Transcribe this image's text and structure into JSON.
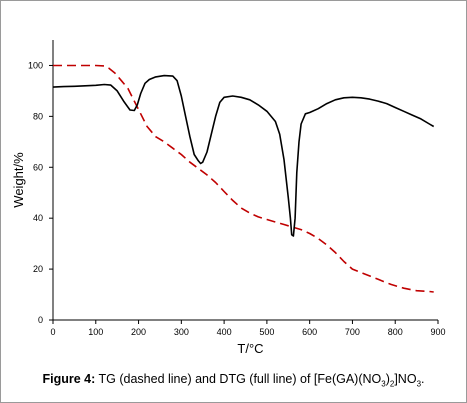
{
  "caption": {
    "label": "Figure 4:",
    "text_before": " TG (dashed line) and DTG (full line) of [Fe(GA)(NO",
    "sub1": "3",
    "text_mid": ")",
    "sub2": "2",
    "text_after": "]NO",
    "sub3": "3",
    "text_end": "."
  },
  "chart_data": {
    "type": "line",
    "title": "",
    "xlabel": "T/°C",
    "ylabel": "Weight/%",
    "xlim": [
      0,
      900
    ],
    "ylim": [
      0,
      110
    ],
    "xticks": [
      0,
      100,
      200,
      300,
      400,
      500,
      600,
      700,
      800,
      900
    ],
    "yticks": [
      0,
      20,
      40,
      60,
      80,
      100
    ],
    "grid": false,
    "legend": "none",
    "series": [
      {
        "label": "TG",
        "style": "dashed",
        "color": "#c00000",
        "x": [
          0,
          25,
          50,
          75,
          100,
          120,
          130,
          145,
          160,
          175,
          190,
          205,
          220,
          240,
          260,
          280,
          300,
          320,
          340,
          360,
          380,
          400,
          420,
          440,
          460,
          480,
          500,
          520,
          540,
          560,
          580,
          600,
          620,
          640,
          660,
          680,
          700,
          730,
          760,
          790,
          820,
          850,
          880,
          890
        ],
        "y": [
          100,
          100,
          100,
          100,
          100,
          99.8,
          99,
          97,
          94,
          91,
          86,
          81,
          76,
          72,
          70,
          67.5,
          65,
          62,
          59.5,
          57,
          54,
          50.5,
          47,
          44,
          42,
          40.5,
          39.5,
          38.5,
          37.5,
          36.5,
          35.5,
          34,
          32,
          29.5,
          26.5,
          23,
          20,
          18,
          16,
          14,
          12.5,
          11.5,
          11.2,
          11
        ]
      },
      {
        "label": "DTG",
        "style": "solid",
        "color": "#000000",
        "x": [
          0,
          25,
          50,
          75,
          100,
          120,
          135,
          150,
          165,
          180,
          190,
          197,
          205,
          215,
          225,
          240,
          260,
          280,
          290,
          300,
          310,
          320,
          330,
          340,
          345,
          350,
          360,
          370,
          380,
          390,
          400,
          420,
          440,
          460,
          480,
          500,
          520,
          530,
          540,
          550,
          555,
          558,
          562,
          566,
          570,
          575,
          580,
          590,
          600,
          620,
          640,
          660,
          680,
          700,
          720,
          740,
          760,
          780,
          800,
          820,
          840,
          860,
          880,
          890
        ],
        "y": [
          91.5,
          91.7,
          91.8,
          92,
          92.2,
          92.5,
          92.3,
          90,
          86,
          82.5,
          82.3,
          84.5,
          89,
          93,
          94.5,
          95.5,
          96,
          95.8,
          94,
          88,
          80,
          72,
          65,
          62.5,
          61.5,
          62,
          66,
          73,
          80,
          85.5,
          87.5,
          88,
          87.5,
          86.5,
          84.5,
          82,
          78,
          73,
          63,
          48,
          40,
          33.5,
          33,
          40,
          58,
          70,
          77,
          81,
          81.5,
          83,
          85,
          86.5,
          87.3,
          87.5,
          87.3,
          86.8,
          86,
          85,
          83.5,
          82,
          80.5,
          79,
          77,
          76
        ]
      }
    ]
  }
}
